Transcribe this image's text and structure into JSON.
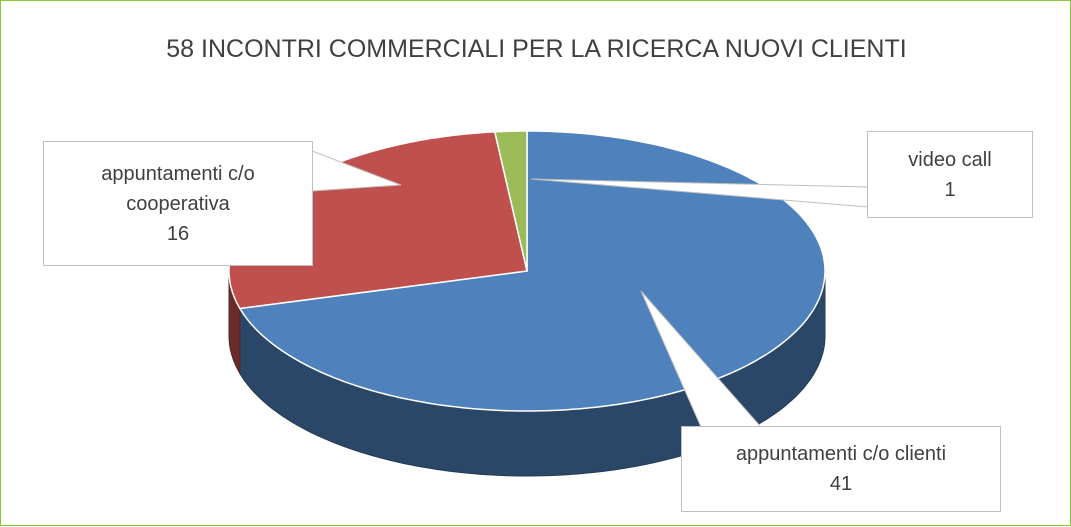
{
  "chart_data": {
    "type": "pie",
    "title": "58 INCONTRI COMMERCIALI PER LA RICERCA NUOVI CLIENTI",
    "categories": [
      "appuntamenti c/o clienti",
      "appuntamenti c/o cooperativa",
      "video call"
    ],
    "values": [
      41,
      16,
      1
    ],
    "colors": [
      "#4f81bd",
      "#c0504d",
      "#9bbb59"
    ]
  }
}
